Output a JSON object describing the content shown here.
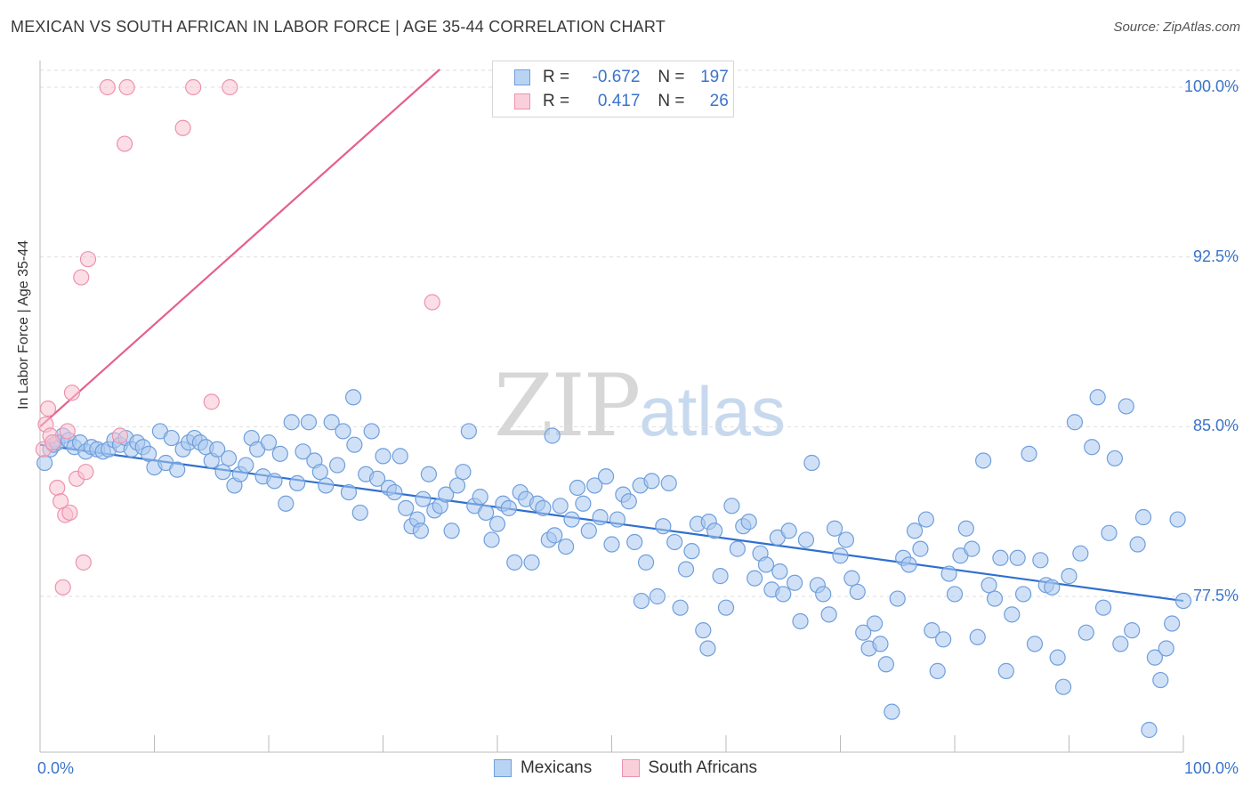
{
  "title": "MEXICAN VS SOUTH AFRICAN IN LABOR FORCE | AGE 35-44 CORRELATION CHART",
  "source": "Source: ZipAtlas.com",
  "watermark": {
    "zip": "ZIP",
    "atlas": "atlas"
  },
  "legend": {
    "rows": [
      {
        "r_label": "R =",
        "r_value": "-0.672",
        "n_label": "N =",
        "n_value": "197"
      },
      {
        "r_label": "R =",
        "r_value": "0.417",
        "n_label": "N =",
        "n_value": "26"
      }
    ]
  },
  "bottom_legend": {
    "series1": "Mexicans",
    "series2": "South Africans"
  },
  "colors": {
    "blue_fill": "#a9c8f0",
    "blue_stroke": "#6f9fdc",
    "blue_line": "#2f6fcf",
    "pink_fill": "#f7c2d2",
    "pink_stroke": "#ec93ae",
    "pink_line": "#e5608a",
    "axis_text": "#3b74c9",
    "grid": "#dedede"
  },
  "chart_data": {
    "type": "scatter",
    "title": "MEXICAN VS SOUTH AFRICAN IN LABOR FORCE | AGE 35-44 CORRELATION CHART",
    "xlabel": "",
    "ylabel": "In Labor Force | Age 35-44",
    "xlim": [
      0,
      100
    ],
    "ylim": [
      70.5,
      101.5
    ],
    "x_tick_labels": [
      "0.0%",
      "100.0%"
    ],
    "y_ticks": [
      77.5,
      85.0,
      92.5,
      100.0
    ],
    "y_tick_labels": [
      "77.5%",
      "85.0%",
      "92.5%",
      "100.0%"
    ],
    "grid": true,
    "series": [
      {
        "name": "Mexicans",
        "r": -0.672,
        "n": 197,
        "trend": {
          "x": [
            0,
            100
          ],
          "y": [
            84.2,
            77.3
          ]
        },
        "points": [
          [
            0.4,
            83.4
          ],
          [
            0.9,
            84.0
          ],
          [
            1.2,
            84.2
          ],
          [
            1.5,
            84.3
          ],
          [
            2.0,
            84.6
          ],
          [
            2.5,
            84.4
          ],
          [
            3.0,
            84.1
          ],
          [
            3.5,
            84.3
          ],
          [
            4.0,
            83.9
          ],
          [
            4.5,
            84.1
          ],
          [
            5.0,
            84.0
          ],
          [
            5.5,
            83.9
          ],
          [
            6.0,
            84.0
          ],
          [
            6.5,
            84.4
          ],
          [
            7.0,
            84.2
          ],
          [
            7.5,
            84.5
          ],
          [
            8.0,
            84.0
          ],
          [
            8.5,
            84.3
          ],
          [
            9.0,
            84.1
          ],
          [
            9.5,
            83.8
          ],
          [
            10.0,
            83.2
          ],
          [
            10.5,
            84.8
          ],
          [
            11.0,
            83.4
          ],
          [
            11.5,
            84.5
          ],
          [
            12.0,
            83.1
          ],
          [
            12.5,
            84.0
          ],
          [
            13.0,
            84.3
          ],
          [
            13.5,
            84.5
          ],
          [
            14.0,
            84.3
          ],
          [
            14.5,
            84.1
          ],
          [
            15.0,
            83.5
          ],
          [
            15.5,
            84.0
          ],
          [
            16.0,
            83.0
          ],
          [
            16.5,
            83.6
          ],
          [
            17.0,
            82.4
          ],
          [
            17.5,
            82.9
          ],
          [
            18.0,
            83.3
          ],
          [
            18.5,
            84.5
          ],
          [
            19.0,
            84.0
          ],
          [
            19.5,
            82.8
          ],
          [
            20.0,
            84.3
          ],
          [
            20.5,
            82.6
          ],
          [
            21.0,
            83.8
          ],
          [
            21.5,
            81.6
          ],
          [
            22.0,
            85.2
          ],
          [
            22.5,
            82.5
          ],
          [
            23.0,
            83.9
          ],
          [
            23.5,
            85.2
          ],
          [
            24.0,
            83.5
          ],
          [
            24.5,
            83.0
          ],
          [
            25.0,
            82.4
          ],
          [
            25.5,
            85.2
          ],
          [
            26.0,
            83.3
          ],
          [
            26.5,
            84.8
          ],
          [
            27.0,
            82.1
          ],
          [
            27.5,
            84.2
          ],
          [
            28.0,
            81.2
          ],
          [
            28.5,
            82.9
          ],
          [
            29.0,
            84.8
          ],
          [
            29.5,
            82.7
          ],
          [
            30.0,
            83.7
          ],
          [
            30.5,
            82.3
          ],
          [
            31.0,
            82.1
          ],
          [
            31.5,
            83.7
          ],
          [
            32.0,
            81.4
          ],
          [
            32.5,
            80.6
          ],
          [
            33.0,
            80.9
          ],
          [
            33.5,
            81.8
          ],
          [
            34.0,
            82.9
          ],
          [
            34.5,
            81.3
          ],
          [
            35.0,
            81.5
          ],
          [
            35.5,
            82.0
          ],
          [
            36.0,
            80.4
          ],
          [
            36.5,
            82.4
          ],
          [
            37.0,
            83.0
          ],
          [
            37.5,
            84.8
          ],
          [
            38.0,
            81.5
          ],
          [
            38.5,
            81.9
          ],
          [
            39.0,
            81.2
          ],
          [
            39.5,
            80.0
          ],
          [
            40.0,
            80.7
          ],
          [
            40.5,
            81.6
          ],
          [
            41.0,
            81.4
          ],
          [
            41.5,
            79.0
          ],
          [
            42.0,
            82.1
          ],
          [
            42.5,
            81.8
          ],
          [
            43.0,
            79.0
          ],
          [
            43.5,
            81.6
          ],
          [
            44.0,
            81.4
          ],
          [
            44.5,
            80.0
          ],
          [
            45.0,
            80.2
          ],
          [
            45.5,
            81.5
          ],
          [
            46.0,
            79.7
          ],
          [
            46.5,
            80.9
          ],
          [
            47.0,
            82.3
          ],
          [
            47.5,
            81.6
          ],
          [
            48.0,
            80.4
          ],
          [
            48.5,
            82.4
          ],
          [
            49.0,
            81.0
          ],
          [
            49.5,
            82.8
          ],
          [
            50.0,
            79.8
          ],
          [
            50.5,
            80.9
          ],
          [
            51.0,
            82.0
          ],
          [
            51.5,
            81.7
          ],
          [
            52.0,
            79.9
          ],
          [
            52.5,
            82.4
          ],
          [
            53.0,
            79.0
          ],
          [
            53.5,
            82.6
          ],
          [
            54.0,
            77.5
          ],
          [
            54.5,
            80.6
          ],
          [
            55.0,
            82.5
          ],
          [
            55.5,
            79.9
          ],
          [
            56.0,
            77.0
          ],
          [
            56.5,
            78.7
          ],
          [
            57.0,
            79.5
          ],
          [
            57.5,
            80.7
          ],
          [
            58.0,
            76.0
          ],
          [
            58.5,
            80.8
          ],
          [
            59.0,
            80.4
          ],
          [
            59.5,
            78.4
          ],
          [
            60.0,
            77.0
          ],
          [
            60.5,
            81.5
          ],
          [
            61.0,
            79.6
          ],
          [
            61.5,
            80.6
          ],
          [
            62.0,
            80.8
          ],
          [
            62.5,
            78.3
          ],
          [
            63.0,
            79.4
          ],
          [
            63.5,
            78.9
          ],
          [
            64.0,
            77.8
          ],
          [
            64.5,
            80.1
          ],
          [
            65.0,
            77.6
          ],
          [
            65.5,
            80.4
          ],
          [
            66.0,
            78.1
          ],
          [
            66.5,
            76.4
          ],
          [
            67.0,
            80.0
          ],
          [
            67.5,
            83.4
          ],
          [
            68.0,
            78.0
          ],
          [
            68.5,
            77.6
          ],
          [
            69.0,
            76.7
          ],
          [
            69.5,
            80.5
          ],
          [
            70.0,
            79.3
          ],
          [
            70.5,
            80.0
          ],
          [
            71.0,
            78.3
          ],
          [
            71.5,
            77.7
          ],
          [
            72.0,
            75.9
          ],
          [
            72.5,
            75.2
          ],
          [
            73.0,
            76.3
          ],
          [
            73.5,
            75.4
          ],
          [
            74.0,
            74.5
          ],
          [
            74.5,
            72.4
          ],
          [
            75.0,
            77.4
          ],
          [
            75.5,
            79.2
          ],
          [
            76.0,
            78.9
          ],
          [
            76.5,
            80.4
          ],
          [
            77.0,
            79.6
          ],
          [
            77.5,
            80.9
          ],
          [
            78.0,
            76.0
          ],
          [
            78.5,
            74.2
          ],
          [
            79.0,
            75.6
          ],
          [
            79.5,
            78.5
          ],
          [
            80.0,
            77.6
          ],
          [
            80.5,
            79.3
          ],
          [
            81.0,
            80.5
          ],
          [
            81.5,
            79.6
          ],
          [
            82.0,
            75.7
          ],
          [
            82.5,
            83.5
          ],
          [
            83.0,
            78.0
          ],
          [
            83.5,
            77.4
          ],
          [
            84.0,
            79.2
          ],
          [
            84.5,
            74.2
          ],
          [
            85.0,
            76.7
          ],
          [
            85.5,
            79.2
          ],
          [
            86.0,
            77.6
          ],
          [
            86.5,
            83.8
          ],
          [
            87.0,
            75.4
          ],
          [
            87.5,
            79.1
          ],
          [
            88.0,
            78.0
          ],
          [
            88.5,
            77.9
          ],
          [
            89.0,
            74.8
          ],
          [
            89.5,
            73.5
          ],
          [
            90.0,
            78.4
          ],
          [
            90.5,
            85.2
          ],
          [
            91.0,
            79.4
          ],
          [
            91.5,
            75.9
          ],
          [
            92.0,
            84.1
          ],
          [
            92.5,
            86.3
          ],
          [
            93.0,
            77.0
          ],
          [
            93.5,
            80.3
          ],
          [
            94.0,
            83.6
          ],
          [
            94.5,
            75.4
          ],
          [
            95.0,
            85.9
          ],
          [
            95.5,
            76.0
          ],
          [
            96.0,
            79.8
          ],
          [
            96.5,
            81.0
          ],
          [
            97.0,
            71.6
          ],
          [
            97.5,
            74.8
          ],
          [
            98.0,
            73.8
          ],
          [
            98.5,
            75.2
          ],
          [
            99.0,
            76.3
          ],
          [
            99.5,
            80.9
          ],
          [
            100.0,
            77.3
          ],
          [
            58.4,
            75.2
          ],
          [
            33.3,
            80.4
          ],
          [
            52.6,
            77.3
          ],
          [
            64.7,
            78.6
          ],
          [
            27.4,
            86.3
          ],
          [
            44.8,
            84.6
          ]
        ]
      },
      {
        "name": "South Africans",
        "r": 0.417,
        "n": 26,
        "trend": {
          "x": [
            0,
            37.2
          ],
          "y": [
            85.0,
            101.8
          ]
        },
        "points": [
          [
            0.3,
            84.0
          ],
          [
            0.5,
            85.1
          ],
          [
            0.7,
            85.8
          ],
          [
            0.9,
            84.6
          ],
          [
            1.1,
            84.3
          ],
          [
            1.5,
            82.3
          ],
          [
            1.8,
            81.7
          ],
          [
            2.0,
            77.9
          ],
          [
            2.2,
            81.1
          ],
          [
            2.6,
            81.2
          ],
          [
            2.8,
            86.5
          ],
          [
            3.2,
            82.7
          ],
          [
            3.6,
            91.6
          ],
          [
            3.8,
            79.0
          ],
          [
            4.0,
            83.0
          ],
          [
            4.2,
            92.4
          ],
          [
            5.9,
            100.0
          ],
          [
            7.4,
            97.5
          ],
          [
            7.6,
            100.0
          ],
          [
            12.5,
            98.2
          ],
          [
            13.4,
            100.0
          ],
          [
            15.0,
            86.1
          ],
          [
            16.6,
            100.0
          ],
          [
            34.3,
            90.5
          ],
          [
            7.0,
            84.6
          ],
          [
            2.4,
            84.8
          ]
        ]
      }
    ]
  }
}
